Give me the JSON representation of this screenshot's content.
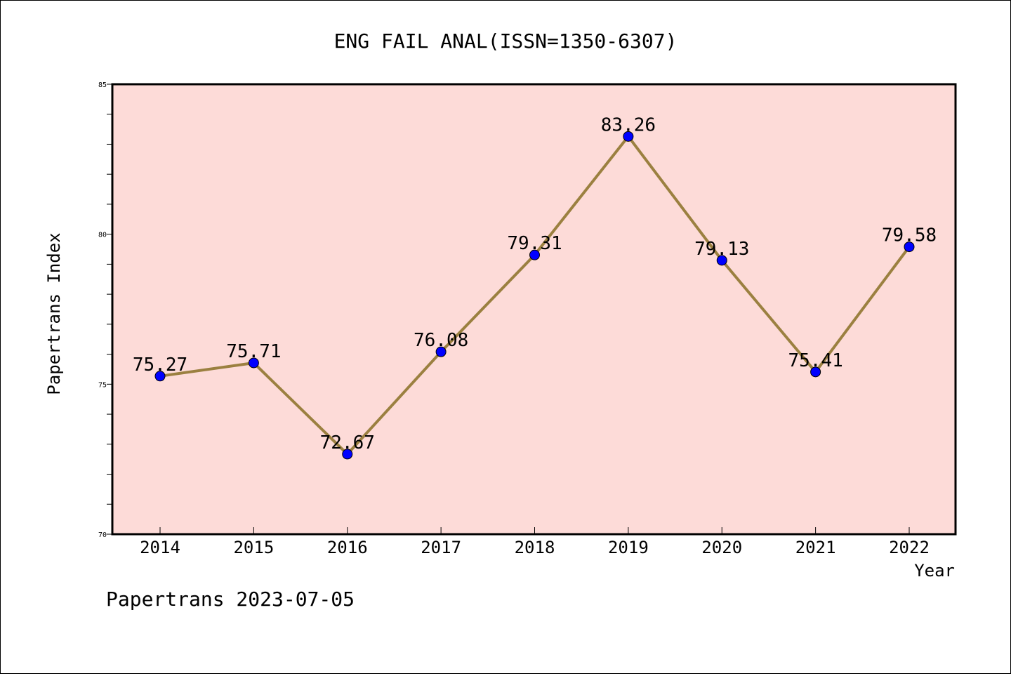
{
  "chart_data": {
    "type": "line",
    "title": "ENG FAIL ANAL(ISSN=1350-6307)",
    "xlabel": "Year",
    "ylabel": "Papertrans Index",
    "categories": [
      "2014",
      "2015",
      "2016",
      "2017",
      "2018",
      "2019",
      "2020",
      "2021",
      "2022"
    ],
    "series": [
      {
        "values": [
          75.27,
          75.71,
          72.67,
          76.08,
          79.31,
          83.26,
          79.13,
          75.41,
          79.58
        ]
      }
    ],
    "data_labels": [
      "75.27",
      "75.71",
      "72.67",
      "76.08",
      "79.31",
      "83.26",
      "79.13",
      "75.41",
      "79.58"
    ],
    "ylim": [
      70,
      85
    ],
    "y_ticks": [
      "70",
      "75",
      "80",
      "85"
    ],
    "grid": false,
    "plot_background": "#fddbd8",
    "line_color": "#9b8040",
    "marker_color": "#0000ff"
  },
  "footer": "Papertrans 2023-07-05"
}
